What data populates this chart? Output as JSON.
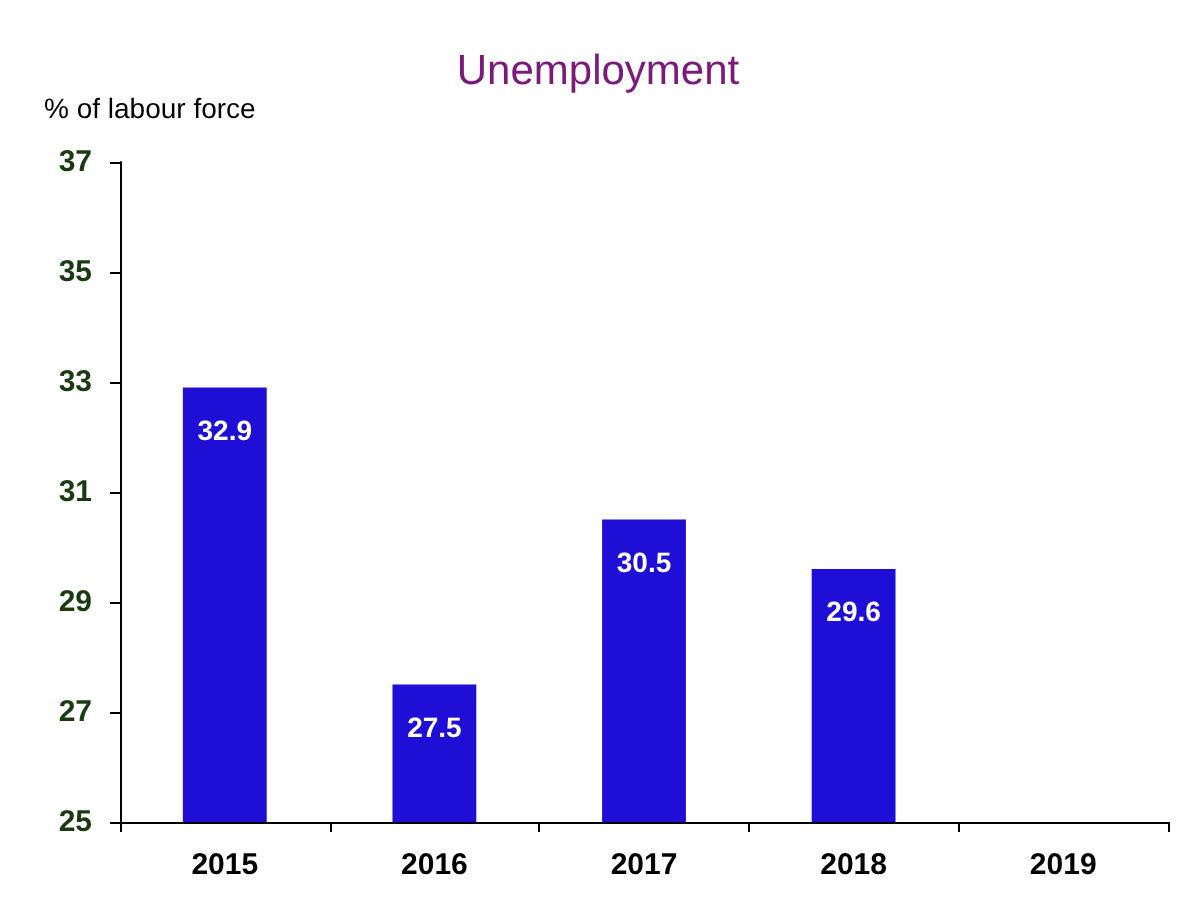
{
  "chart_data": {
    "type": "bar",
    "title": "Unemployment",
    "ylabel": "% of labour force",
    "categories": [
      "2015",
      "2016",
      "2017",
      "2018",
      "2019"
    ],
    "series": [
      {
        "color": "#1f0fd6",
        "values": [
          32.9,
          27.5,
          30.5,
          29.6,
          null
        ]
      }
    ],
    "ylim": [
      25,
      37
    ],
    "yticks": [
      25,
      27,
      29,
      31,
      33,
      35,
      37
    ],
    "grid": false,
    "data_labels": true
  }
}
